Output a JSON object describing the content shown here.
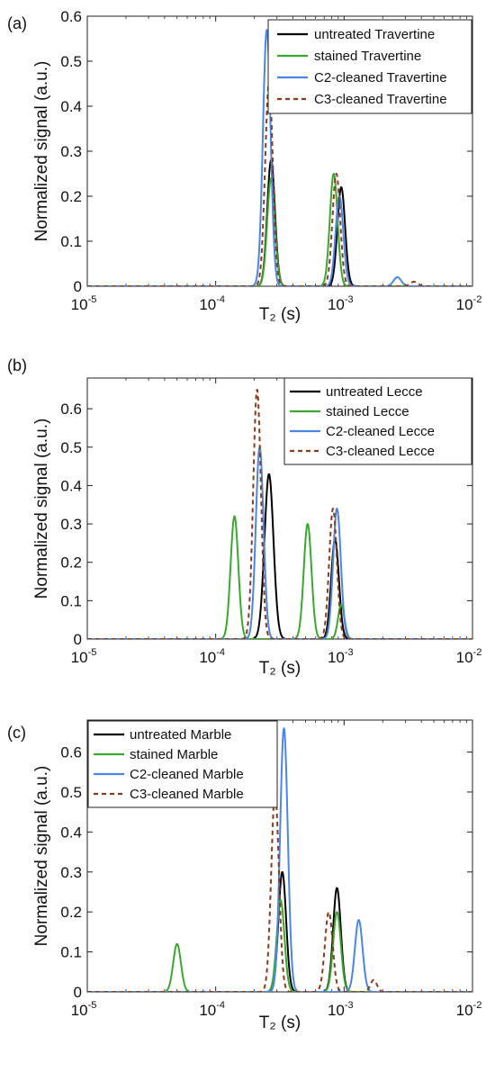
{
  "colors": {
    "untreated": "#000000",
    "stained": "#3aa82e",
    "c2": "#4a86e8",
    "c3": "#8b3a1a",
    "axes": "#222222"
  },
  "chart_data": [
    {
      "type": "line",
      "panel_label": "(a)",
      "xscale": "log",
      "xlim": [
        1e-05,
        0.01
      ],
      "ylim": [
        0,
        0.6
      ],
      "xlabel": "T₂ (s)",
      "ylabel": "Normalized signal (a.u.)",
      "xticks": [
        {
          "base": "10",
          "exp": "-5"
        },
        {
          "base": "10",
          "exp": "-4"
        },
        {
          "base": "10",
          "exp": "-3"
        },
        {
          "base": "10",
          "exp": "-2"
        }
      ],
      "yticks": [
        "0",
        "0.1",
        "0.2",
        "0.3",
        "0.4",
        "0.5",
        "0.6"
      ],
      "ytick_values": [
        0,
        0.1,
        0.2,
        0.3,
        0.4,
        0.5,
        0.6
      ],
      "legend_position": "top-right",
      "series": [
        {
          "name": "untreated Travertine",
          "color_key": "untreated",
          "dashed": false,
          "peaks": [
            {
              "x": 0.00027,
              "y": 0.28,
              "w": 0.03
            },
            {
              "x": 0.00095,
              "y": 0.22,
              "w": 0.03
            }
          ]
        },
        {
          "name": "stained Travertine",
          "color_key": "stained",
          "dashed": false,
          "peaks": [
            {
              "x": 0.00027,
              "y": 0.24,
              "w": 0.03
            },
            {
              "x": 0.00083,
              "y": 0.25,
              "w": 0.03
            }
          ]
        },
        {
          "name": "C2-cleaned Travertine",
          "color_key": "c2",
          "dashed": false,
          "peaks": [
            {
              "x": 0.00025,
              "y": 0.57,
              "w": 0.03
            },
            {
              "x": 0.00092,
              "y": 0.2,
              "w": 0.03
            },
            {
              "x": 0.0026,
              "y": 0.02,
              "w": 0.03
            }
          ]
        },
        {
          "name": "C3-cleaned Travertine",
          "color_key": "c3",
          "dashed": true,
          "peaks": [
            {
              "x": 0.00026,
              "y": 0.45,
              "w": 0.03
            },
            {
              "x": 0.00087,
              "y": 0.25,
              "w": 0.03
            },
            {
              "x": 0.0035,
              "y": 0.01,
              "w": 0.03
            }
          ]
        }
      ]
    },
    {
      "type": "line",
      "panel_label": "(b)",
      "xscale": "log",
      "xlim": [
        1e-05,
        0.01
      ],
      "ylim": [
        0,
        0.68
      ],
      "xlabel": "T₂ (s)",
      "ylabel": "Normalized signal (a.u.)",
      "xticks": [
        {
          "base": "10",
          "exp": "-5"
        },
        {
          "base": "10",
          "exp": "-4"
        },
        {
          "base": "10",
          "exp": "-3"
        },
        {
          "base": "10",
          "exp": "-2"
        }
      ],
      "yticks": [
        "0",
        "0.1",
        "0.2",
        "0.3",
        "0.4",
        "0.5",
        "0.6"
      ],
      "ytick_values": [
        0,
        0.1,
        0.2,
        0.3,
        0.4,
        0.5,
        0.6
      ],
      "legend_position": "top-right",
      "series": [
        {
          "name": "untreated Lecce",
          "color_key": "untreated",
          "dashed": false,
          "peaks": [
            {
              "x": 0.00026,
              "y": 0.43,
              "w": 0.035
            },
            {
              "x": 0.00085,
              "y": 0.26,
              "w": 0.03
            }
          ]
        },
        {
          "name": "stained Lecce",
          "color_key": "stained",
          "dashed": false,
          "peaks": [
            {
              "x": 0.00014,
              "y": 0.32,
              "w": 0.03
            },
            {
              "x": 0.00052,
              "y": 0.3,
              "w": 0.03
            },
            {
              "x": 0.00095,
              "y": 0.09,
              "w": 0.025
            }
          ]
        },
        {
          "name": "C2-cleaned Lecce",
          "color_key": "c2",
          "dashed": false,
          "peaks": [
            {
              "x": 0.00022,
              "y": 0.5,
              "w": 0.03
            },
            {
              "x": 0.00088,
              "y": 0.34,
              "w": 0.03
            }
          ]
        },
        {
          "name": "C3-cleaned Lecce",
          "color_key": "c3",
          "dashed": true,
          "peaks": [
            {
              "x": 0.00021,
              "y": 0.65,
              "w": 0.03
            },
            {
              "x": 0.00082,
              "y": 0.34,
              "w": 0.03
            }
          ]
        }
      ]
    },
    {
      "type": "line",
      "panel_label": "(c)",
      "xscale": "log",
      "xlim": [
        1e-05,
        0.01
      ],
      "ylim": [
        0,
        0.68
      ],
      "xlabel": "T₂ (s)",
      "ylabel": "Normalized signal (a.u.)",
      "xticks": [
        {
          "base": "10",
          "exp": "-5"
        },
        {
          "base": "10",
          "exp": "-4"
        },
        {
          "base": "10",
          "exp": "-3"
        },
        {
          "base": "10",
          "exp": "-2"
        }
      ],
      "yticks": [
        "0",
        "0.1",
        "0.2",
        "0.3",
        "0.4",
        "0.5",
        "0.6"
      ],
      "ytick_values": [
        0,
        0.1,
        0.2,
        0.3,
        0.4,
        0.5,
        0.6
      ],
      "legend_position": "top-left",
      "series": [
        {
          "name": "untreated Marble",
          "color_key": "untreated",
          "dashed": false,
          "peaks": [
            {
              "x": 0.00033,
              "y": 0.3,
              "w": 0.03
            },
            {
              "x": 0.00088,
              "y": 0.26,
              "w": 0.03
            }
          ]
        },
        {
          "name": "stained Marble",
          "color_key": "stained",
          "dashed": false,
          "peaks": [
            {
              "x": 5e-05,
              "y": 0.12,
              "w": 0.03
            },
            {
              "x": 0.00032,
              "y": 0.23,
              "w": 0.03
            },
            {
              "x": 0.00088,
              "y": 0.2,
              "w": 0.03
            }
          ]
        },
        {
          "name": "C2-cleaned Marble",
          "color_key": "c2",
          "dashed": false,
          "peaks": [
            {
              "x": 0.00034,
              "y": 0.66,
              "w": 0.03
            },
            {
              "x": 0.0013,
              "y": 0.18,
              "w": 0.03
            }
          ]
        },
        {
          "name": "C3-cleaned Marble",
          "color_key": "c3",
          "dashed": true,
          "peaks": [
            {
              "x": 0.00029,
              "y": 0.5,
              "w": 0.03
            },
            {
              "x": 0.00076,
              "y": 0.2,
              "w": 0.03
            },
            {
              "x": 0.0017,
              "y": 0.03,
              "w": 0.025
            }
          ]
        }
      ]
    }
  ]
}
